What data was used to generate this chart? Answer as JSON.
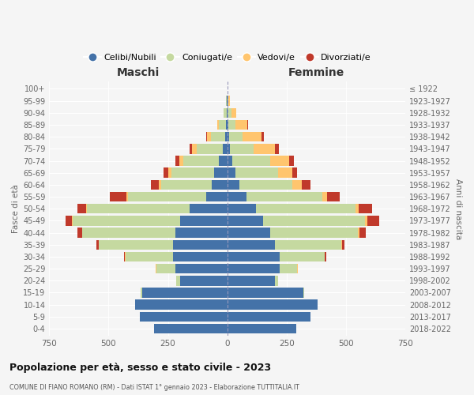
{
  "age_groups": [
    "0-4",
    "5-9",
    "10-14",
    "15-19",
    "20-24",
    "25-29",
    "30-34",
    "35-39",
    "40-44",
    "45-49",
    "50-54",
    "55-59",
    "60-64",
    "65-69",
    "70-74",
    "75-79",
    "80-84",
    "85-89",
    "90-94",
    "95-99",
    "100+"
  ],
  "birth_years": [
    "2018-2022",
    "2013-2017",
    "2008-2012",
    "2003-2007",
    "1998-2002",
    "1993-1997",
    "1988-1992",
    "1983-1987",
    "1978-1982",
    "1973-1977",
    "1968-1972",
    "1963-1967",
    "1958-1962",
    "1953-1957",
    "1948-1952",
    "1943-1947",
    "1938-1942",
    "1933-1937",
    "1928-1932",
    "1923-1927",
    "≤ 1922"
  ],
  "male": {
    "celibi": [
      310,
      370,
      390,
      360,
      200,
      220,
      230,
      230,
      220,
      200,
      160,
      90,
      65,
      55,
      35,
      20,
      10,
      5,
      2,
      1,
      0
    ],
    "coniugati": [
      0,
      0,
      0,
      5,
      15,
      80,
      200,
      310,
      390,
      450,
      430,
      330,
      215,
      180,
      150,
      110,
      60,
      30,
      12,
      4,
      0
    ],
    "vedovi": [
      0,
      0,
      0,
      0,
      0,
      1,
      1,
      2,
      3,
      5,
      5,
      5,
      8,
      15,
      18,
      20,
      15,
      8,
      3,
      1,
      0
    ],
    "divorziati": [
      0,
      0,
      0,
      0,
      0,
      2,
      5,
      10,
      20,
      25,
      35,
      70,
      35,
      20,
      15,
      8,
      5,
      0,
      0,
      0,
      0
    ]
  },
  "female": {
    "nubili": [
      290,
      350,
      380,
      320,
      200,
      220,
      220,
      200,
      180,
      150,
      120,
      80,
      50,
      35,
      20,
      12,
      8,
      4,
      2,
      1,
      0
    ],
    "coniugate": [
      0,
      0,
      0,
      5,
      15,
      75,
      190,
      280,
      370,
      430,
      420,
      320,
      225,
      180,
      160,
      100,
      55,
      30,
      15,
      5,
      1
    ],
    "vedove": [
      0,
      0,
      0,
      0,
      0,
      1,
      2,
      3,
      8,
      10,
      15,
      20,
      40,
      60,
      80,
      90,
      80,
      50,
      20,
      5,
      1
    ],
    "divorziate": [
      0,
      0,
      0,
      0,
      0,
      1,
      5,
      12,
      25,
      50,
      55,
      55,
      35,
      20,
      20,
      15,
      10,
      3,
      1,
      0,
      0
    ]
  },
  "colors": {
    "celibi": "#4472a8",
    "coniugati": "#c5d9a0",
    "vedovi": "#ffc56e",
    "divorziati": "#c0392b"
  },
  "xlim": 750,
  "title": "Popolazione per età, sesso e stato civile - 2023",
  "subtitle": "COMUNE DI FIANO ROMANO (RM) - Dati ISTAT 1° gennaio 2023 - Elaborazione TUTTITALIA.IT",
  "xlabel_left": "Maschi",
  "xlabel_right": "Femmine",
  "ylabel_left": "Fasce di età",
  "ylabel_right": "Anni di nascita",
  "legend_labels": [
    "Celibi/Nubili",
    "Coniugati/e",
    "Vedovi/e",
    "Divorziati/e"
  ],
  "background_color": "#f5f5f5"
}
